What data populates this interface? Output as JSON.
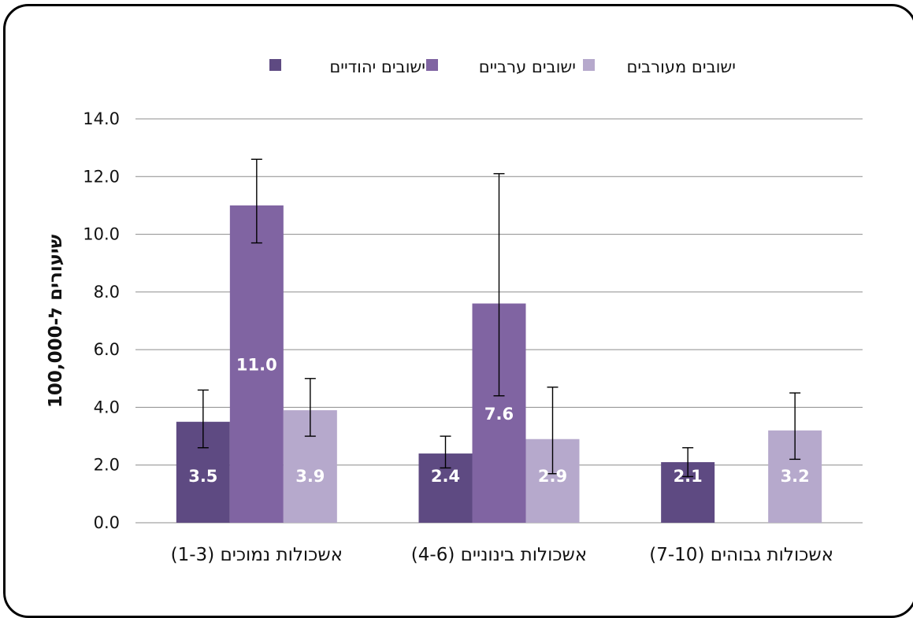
{
  "chart_data": {
    "type": "bar",
    "title": "",
    "ylabel": "שיעורים ל-100,000",
    "xlabel": "",
    "ylim": [
      0,
      14
    ],
    "y_ticks": [
      "0.0",
      "2.0",
      "4.0",
      "6.0",
      "8.0",
      "10.0",
      "12.0",
      "14.0"
    ],
    "categories": [
      "אשכולות נמוכים (1-3)",
      "אשכולות בינוניים (4-6)",
      "אשכולות גבוהים (7-10)"
    ],
    "grid": true,
    "legend_position": "top",
    "series": [
      {
        "name": "ישובים יהודיים",
        "color": "#5e4a82",
        "values": [
          3.5,
          2.4,
          2.1
        ],
        "labels": [
          "3.5",
          "2.4",
          "2.1"
        ],
        "error_low": [
          2.6,
          1.9,
          1.6
        ],
        "error_high": [
          4.6,
          3.0,
          2.6
        ]
      },
      {
        "name": "ישובים ערביים",
        "color": "#8064a2",
        "values": [
          11.0,
          7.6,
          null
        ],
        "labels": [
          "11.0",
          "7.6",
          ""
        ],
        "error_low": [
          9.7,
          4.4,
          null
        ],
        "error_high": [
          12.6,
          12.1,
          null
        ]
      },
      {
        "name": "ישובים מעורבים",
        "color": "#b6a9cc",
        "values": [
          3.9,
          2.9,
          3.2
        ],
        "labels": [
          "3.9",
          "2.9",
          "3.2"
        ],
        "error_low": [
          3.0,
          1.7,
          2.2
        ],
        "error_high": [
          5.0,
          4.7,
          4.5
        ]
      }
    ]
  }
}
